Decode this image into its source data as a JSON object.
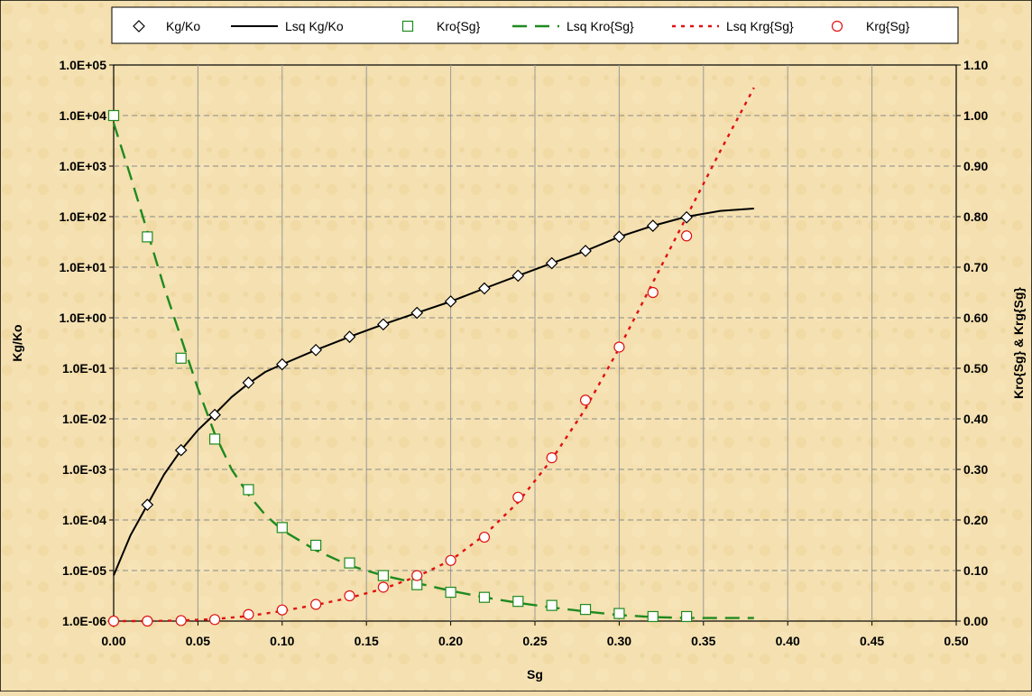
{
  "chart_data": {
    "type": "scatter",
    "x_axis": {
      "label": "Sg",
      "min": 0.0,
      "max": 0.5,
      "step": 0.05,
      "tick_labels": [
        "0.00",
        "0.05",
        "0.10",
        "0.15",
        "0.20",
        "0.25",
        "0.30",
        "0.35",
        "0.40",
        "0.45",
        "0.50"
      ]
    },
    "y_axis_left": {
      "label": "Kg/Ko",
      "scale": "log",
      "min": 1e-06,
      "max": 100000.0,
      "tick_labels": [
        "1.0E-06",
        "1.0E-05",
        "1.0E-04",
        "1.0E-03",
        "1.0E-02",
        "1.0E-01",
        "1.0E+00",
        "1.0E+01",
        "1.0E+02",
        "1.0E+03",
        "1.0E+04",
        "1.0E+05"
      ]
    },
    "y_axis_right": {
      "label": "Kro{Sg} & Krg{Sg}",
      "scale": "linear",
      "min": 0.0,
      "max": 1.1,
      "step": 0.1,
      "tick_labels": [
        "0.00",
        "0.10",
        "0.20",
        "0.30",
        "0.40",
        "0.50",
        "0.60",
        "0.70",
        "0.80",
        "0.90",
        "1.00",
        "1.10"
      ]
    },
    "grid": true,
    "legend_position": "top",
    "series": [
      {
        "name": "Kg/Ko",
        "axis": "left",
        "style": "markers",
        "marker": "diamond",
        "color": "#000000",
        "x": [
          0.0,
          0.02,
          0.04,
          0.06,
          0.08,
          0.1,
          0.12,
          0.14,
          0.16,
          0.18,
          0.2,
          0.22,
          0.24,
          0.26,
          0.28,
          0.3,
          0.32,
          0.34
        ],
        "y": [
          1e-06,
          0.0002,
          0.0024,
          0.012,
          0.052,
          0.12,
          0.23,
          0.42,
          0.74,
          1.25,
          2.1,
          3.8,
          6.8,
          12,
          21,
          40,
          66,
          97
        ]
      },
      {
        "name": "Lsq Kg/Ko",
        "axis": "left",
        "style": "line",
        "dash": "solid",
        "color": "#000000",
        "x": [
          0.0,
          0.01,
          0.02,
          0.03,
          0.04,
          0.05,
          0.06,
          0.07,
          0.08,
          0.09,
          0.1,
          0.12,
          0.14,
          0.16,
          0.18,
          0.2,
          0.22,
          0.24,
          0.26,
          0.28,
          0.3,
          0.32,
          0.34,
          0.36,
          0.38
        ],
        "y": [
          8e-06,
          5e-05,
          0.0002,
          0.0008,
          0.0024,
          0.006,
          0.0125,
          0.027,
          0.05,
          0.085,
          0.12,
          0.23,
          0.42,
          0.74,
          1.25,
          2.1,
          3.8,
          6.8,
          12,
          21,
          40,
          66,
          100,
          130,
          145
        ]
      },
      {
        "name": "Kro{Sg}",
        "axis": "right",
        "style": "markers",
        "marker": "square",
        "color": "#1f8a1f",
        "x": [
          0.0,
          0.02,
          0.04,
          0.06,
          0.08,
          0.1,
          0.12,
          0.14,
          0.16,
          0.18,
          0.2,
          0.22,
          0.24,
          0.26,
          0.28,
          0.3,
          0.32,
          0.34
        ],
        "y": [
          1.0,
          0.76,
          0.52,
          0.36,
          0.26,
          0.185,
          0.15,
          0.115,
          0.09,
          0.072,
          0.057,
          0.047,
          0.039,
          0.031,
          0.023,
          0.015,
          0.009,
          0.009
        ]
      },
      {
        "name": "Lsq Kro{Sg}",
        "axis": "right",
        "style": "line",
        "dash": "long-dash",
        "color": "#1f8a1f",
        "x": [
          0.0,
          0.01,
          0.02,
          0.03,
          0.04,
          0.05,
          0.06,
          0.07,
          0.08,
          0.09,
          0.1,
          0.12,
          0.14,
          0.16,
          0.18,
          0.2,
          0.22,
          0.24,
          0.26,
          0.28,
          0.3,
          0.32,
          0.34,
          0.36,
          0.38
        ],
        "y": [
          0.985,
          0.88,
          0.77,
          0.66,
          0.56,
          0.46,
          0.37,
          0.3,
          0.25,
          0.21,
          0.18,
          0.14,
          0.11,
          0.09,
          0.075,
          0.06,
          0.047,
          0.036,
          0.027,
          0.019,
          0.012,
          0.008,
          0.006,
          0.006,
          0.006
        ]
      },
      {
        "name": "Lsq Krg{Sg}",
        "axis": "right",
        "style": "line",
        "dash": "dotted",
        "color": "#e01010",
        "x": [
          0.0,
          0.02,
          0.04,
          0.06,
          0.08,
          0.1,
          0.12,
          0.14,
          0.16,
          0.18,
          0.2,
          0.22,
          0.24,
          0.26,
          0.28,
          0.3,
          0.32,
          0.34,
          0.36,
          0.38
        ],
        "y": [
          0.0,
          0.0,
          0.001,
          0.004,
          0.01,
          0.02,
          0.032,
          0.046,
          0.064,
          0.088,
          0.12,
          0.17,
          0.235,
          0.32,
          0.42,
          0.54,
          0.67,
          0.8,
          0.93,
          1.055
        ]
      },
      {
        "name": "Krg{Sg}",
        "axis": "right",
        "style": "markers",
        "marker": "circle",
        "color": "#e01010",
        "x": [
          0.0,
          0.02,
          0.04,
          0.06,
          0.08,
          0.1,
          0.12,
          0.14,
          0.16,
          0.18,
          0.2,
          0.22,
          0.24,
          0.26,
          0.28,
          0.3,
          0.32,
          0.34
        ],
        "y": [
          0.0,
          0.0,
          0.001,
          0.003,
          0.013,
          0.022,
          0.033,
          0.05,
          0.067,
          0.09,
          0.12,
          0.166,
          0.245,
          0.323,
          0.437,
          0.542,
          0.65,
          0.762
        ]
      }
    ]
  }
}
